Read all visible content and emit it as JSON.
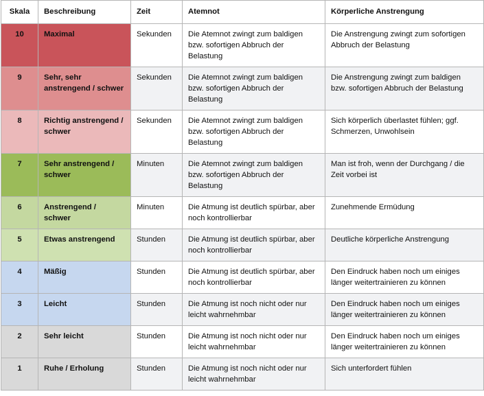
{
  "table": {
    "header": [
      "Skala",
      "Beschreibung",
      "Zeit",
      "Atemnot",
      "Körperliche Anstrengung"
    ],
    "rows": [
      [
        "10",
        "Maximal",
        "Sekunden",
        "Die Atemnot zwingt zum baldigen bzw. sofortigen Abbruch der Belastung",
        "Die Anstrengung zwingt zum sofortigen Abbruch der Belastung"
      ],
      [
        "9",
        "Sehr, sehr anstrengend / schwer",
        "Sekunden",
        "Die Atemnot zwingt zum baldigen bzw. sofortigen Abbruch der Belastung",
        "Die Anstrengung zwingt zum baldigen bzw. sofortigen Abbruch der Belastung"
      ],
      [
        "8",
        "Richtig anstrengend / schwer",
        "Sekunden",
        "Die Atemnot zwingt zum baldigen bzw. sofortigen Abbruch der Belastung",
        "Sich körperlich überlastet fühlen; ggf. Schmerzen, Unwohlsein"
      ],
      [
        "7",
        "Sehr anstrengend / schwer",
        "Minuten",
        "Die Atemnot zwingt zum baldigen bzw. sofortigen Abbruch der Belastung",
        "Man ist froh, wenn der Durchgang / die Zeit vorbei ist"
      ],
      [
        "6",
        "Anstrengend / schwer",
        "Minuten",
        "Die Atmung ist deutlich spürbar, aber noch kontrollierbar",
        "Zunehmende Ermüdung"
      ],
      [
        "5",
        "Etwas anstrengend",
        "Stunden",
        "Die Atmung ist deutlich spürbar, aber noch kontrollierbar",
        "Deutliche körperliche Anstrengung"
      ],
      [
        "4",
        "Mäßig",
        "Stunden",
        "Die Atmung ist deutlich spürbar, aber noch kontrollierbar",
        "Den Eindruck haben noch um einiges länger weitertrainieren zu können"
      ],
      [
        "3",
        "Leicht",
        "Stunden",
        "Die Atmung ist noch nicht oder nur leicht wahrnehmbar",
        "Den Eindruck haben noch um einiges länger weitertrainieren zu können"
      ],
      [
        "2",
        "Sehr leicht",
        "Stunden",
        "Die Atmung ist noch nicht oder nur leicht wahrnehmbar",
        "Den Eindruck haben noch um einiges länger weitertrainieren zu können"
      ],
      [
        "1",
        "Ruhe / Erholung",
        "Stunden",
        "Die Atmung ist noch nicht oder nur leicht wahrnehmbar",
        "Sich unterfordert fühlen"
      ]
    ]
  }
}
